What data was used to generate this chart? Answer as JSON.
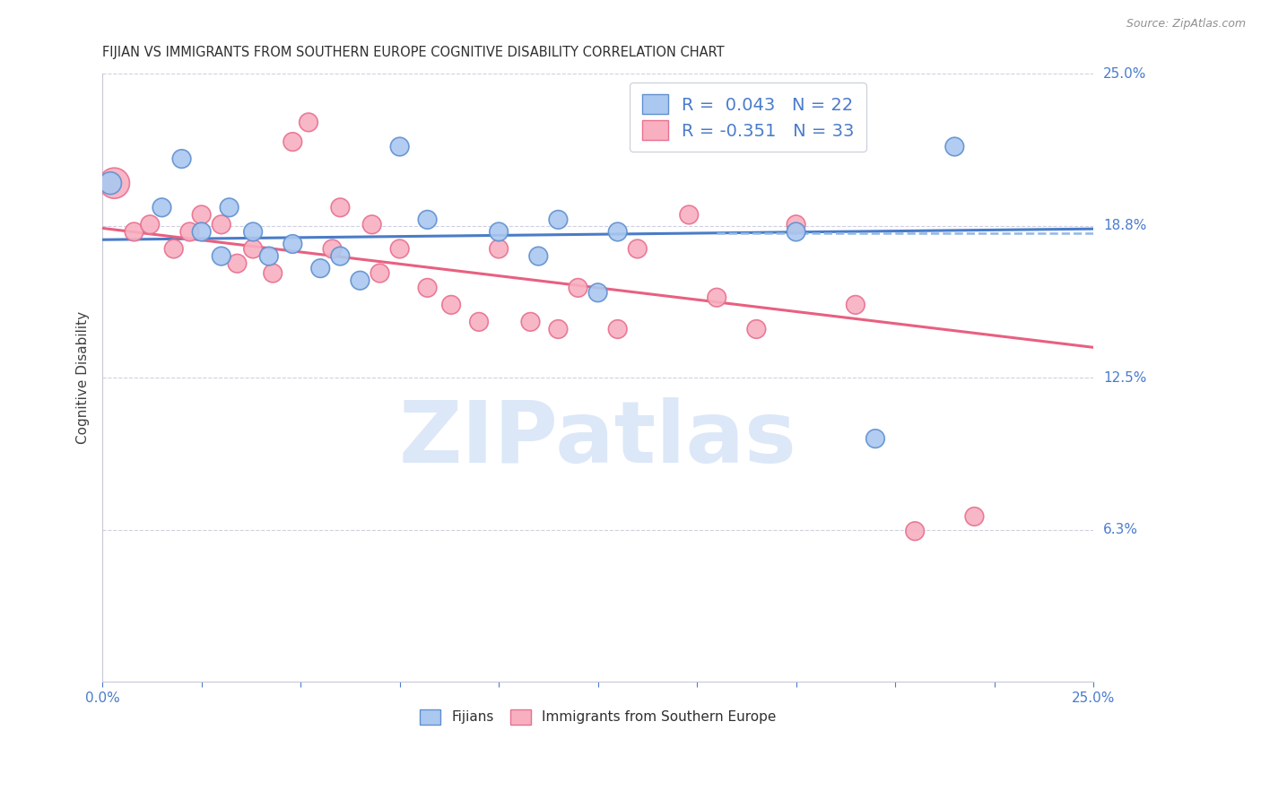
{
  "title": "FIJIAN VS IMMIGRANTS FROM SOUTHERN EUROPE COGNITIVE DISABILITY CORRELATION CHART",
  "source": "Source: ZipAtlas.com",
  "ylabel": "Cognitive Disability",
  "xmin": 0.0,
  "xmax": 0.25,
  "ymin": 0.0,
  "ymax": 0.25,
  "fijian_color": "#aac8f0",
  "fijian_edge_color": "#6090d0",
  "immigrant_color": "#f8b0c0",
  "immigrant_edge_color": "#e87090",
  "fijian_R": 0.043,
  "fijian_N": 22,
  "immigrant_R": -0.351,
  "immigrant_N": 33,
  "trend_blue": "#4a7cc8",
  "trend_pink": "#e86080",
  "dashed_blue": "#90b8e8",
  "watermark": "ZIPatlas",
  "watermark_color": "#dce8f8",
  "grid_color": "#d0d0e0",
  "background_color": "#ffffff",
  "right_label_color": "#4a7ccc",
  "legend_R_color": "#4a7ccc",
  "legend_N_color": "#4a7ccc",
  "fijian_x": [
    0.002,
    0.015,
    0.02,
    0.025,
    0.03,
    0.032,
    0.038,
    0.042,
    0.048,
    0.055,
    0.06,
    0.065,
    0.075,
    0.082,
    0.1,
    0.11,
    0.115,
    0.125,
    0.13,
    0.175,
    0.195,
    0.215
  ],
  "fijian_y": [
    0.205,
    0.195,
    0.215,
    0.185,
    0.175,
    0.195,
    0.185,
    0.175,
    0.18,
    0.17,
    0.175,
    0.165,
    0.22,
    0.19,
    0.185,
    0.175,
    0.19,
    0.16,
    0.185,
    0.185,
    0.1,
    0.22
  ],
  "immigrant_x": [
    0.003,
    0.008,
    0.012,
    0.018,
    0.022,
    0.025,
    0.03,
    0.034,
    0.038,
    0.043,
    0.048,
    0.052,
    0.058,
    0.06,
    0.068,
    0.07,
    0.075,
    0.082,
    0.088,
    0.095,
    0.1,
    0.108,
    0.115,
    0.12,
    0.13,
    0.135,
    0.148,
    0.155,
    0.165,
    0.175,
    0.19,
    0.205,
    0.22
  ],
  "immigrant_y": [
    0.205,
    0.185,
    0.188,
    0.178,
    0.185,
    0.192,
    0.188,
    0.172,
    0.178,
    0.168,
    0.222,
    0.23,
    0.178,
    0.195,
    0.188,
    0.168,
    0.178,
    0.162,
    0.155,
    0.148,
    0.178,
    0.148,
    0.145,
    0.162,
    0.145,
    0.178,
    0.192,
    0.158,
    0.145,
    0.188,
    0.155,
    0.062,
    0.068
  ],
  "immigrant_size_0": 600,
  "default_size": 220
}
